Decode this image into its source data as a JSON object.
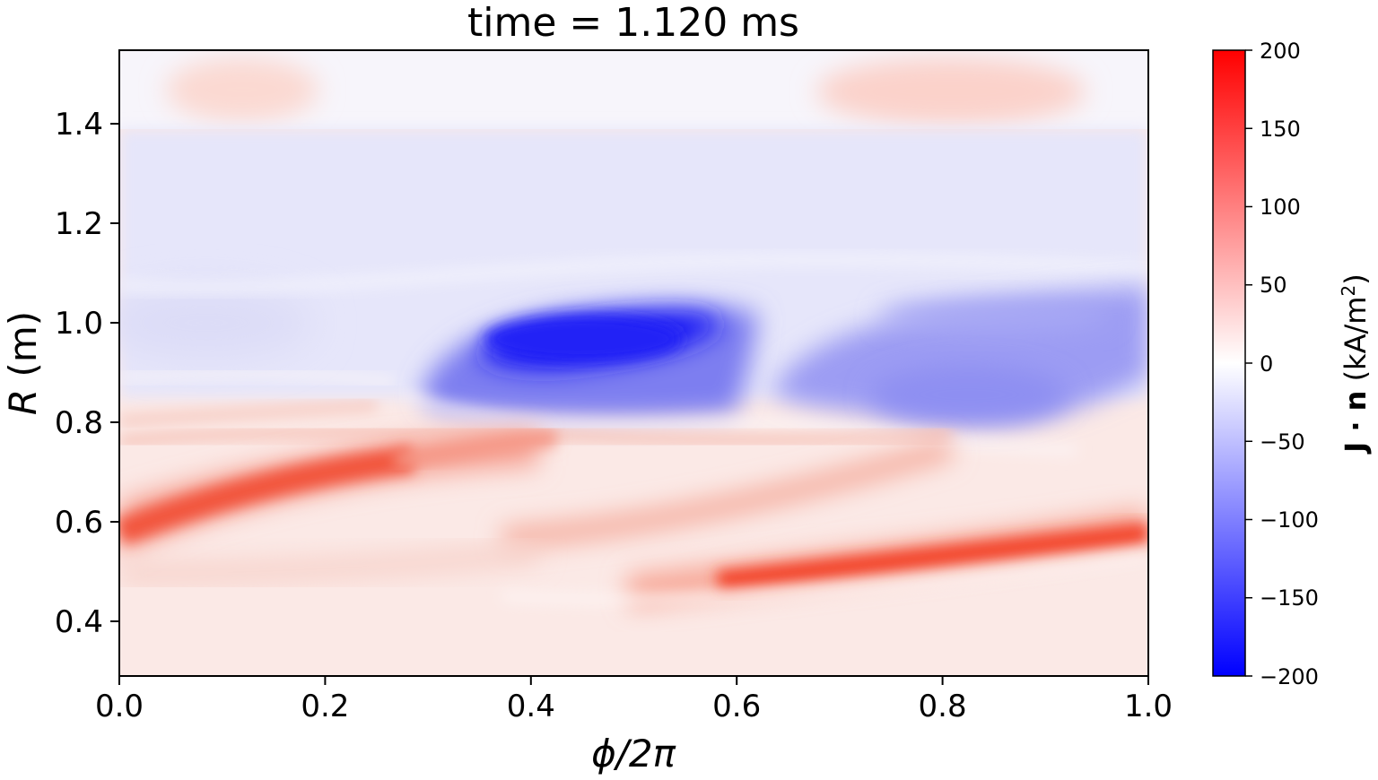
{
  "chart_data": {
    "type": "heatmap",
    "title": "time = 1.120 ms",
    "xlabel": "ϕ/2π",
    "ylabel_symbol": "R",
    "ylabel_unit": " (m)",
    "xlim": [
      0.0,
      1.0
    ],
    "ylim": [
      0.29,
      1.545
    ],
    "x_ticks": [
      "0.0",
      "0.2",
      "0.4",
      "0.6",
      "0.8",
      "1.0"
    ],
    "y_ticks": [
      "0.4",
      "0.6",
      "0.8",
      "1.0",
      "1.2",
      "1.4"
    ],
    "colorbar": {
      "label_bold": "J · n",
      "label_unit": " (kA/m",
      "label_sup": "2",
      "label_close": ")",
      "range": [
        -200,
        200
      ],
      "ticks": [
        "200",
        "150",
        "100",
        "50",
        "0",
        "−50",
        "−100",
        "−150",
        "−200"
      ],
      "colormap": "bwr",
      "colors": {
        "low": "#0000ff",
        "mid": "#ffffff",
        "high": "#ff0000"
      }
    },
    "features": [
      {
        "region": "R 1.38–1.545, ϕ/2π 0.0–1.0",
        "value_kA_m2": 15,
        "note": "weak positive patches near ϕ/2π 0.12 and 0.85"
      },
      {
        "region": "R 0.85–1.38, ϕ/2π 0.0–1.0",
        "value_kA_m2": -30,
        "note": "broad weak negative band"
      },
      {
        "region": "R 0.82–1.04, ϕ/2π 0.3–0.63",
        "value_kA_m2": -170,
        "note": "strong negative lobe, minimum near ϕ/2π 0.52, R 1.0"
      },
      {
        "region": "R 0.75–1.05, ϕ/2π 0.65–1.0",
        "value_kA_m2": -80,
        "note": "secondary negative lobe"
      },
      {
        "region": "R 0.53–0.64, ϕ/2π 0.0–0.45",
        "value_kA_m2": 160,
        "note": "strong positive band rising toward larger ϕ"
      },
      {
        "region": "R 0.48–0.62, ϕ/2π 0.6–1.0",
        "value_kA_m2": 170,
        "note": "strong positive band, maximum near ϕ/2π 1.0, R 0.58"
      },
      {
        "region": "R 0.29–0.78, ϕ/2π 0.0–1.0",
        "value_kA_m2": 30,
        "note": "weak positive background"
      }
    ]
  }
}
